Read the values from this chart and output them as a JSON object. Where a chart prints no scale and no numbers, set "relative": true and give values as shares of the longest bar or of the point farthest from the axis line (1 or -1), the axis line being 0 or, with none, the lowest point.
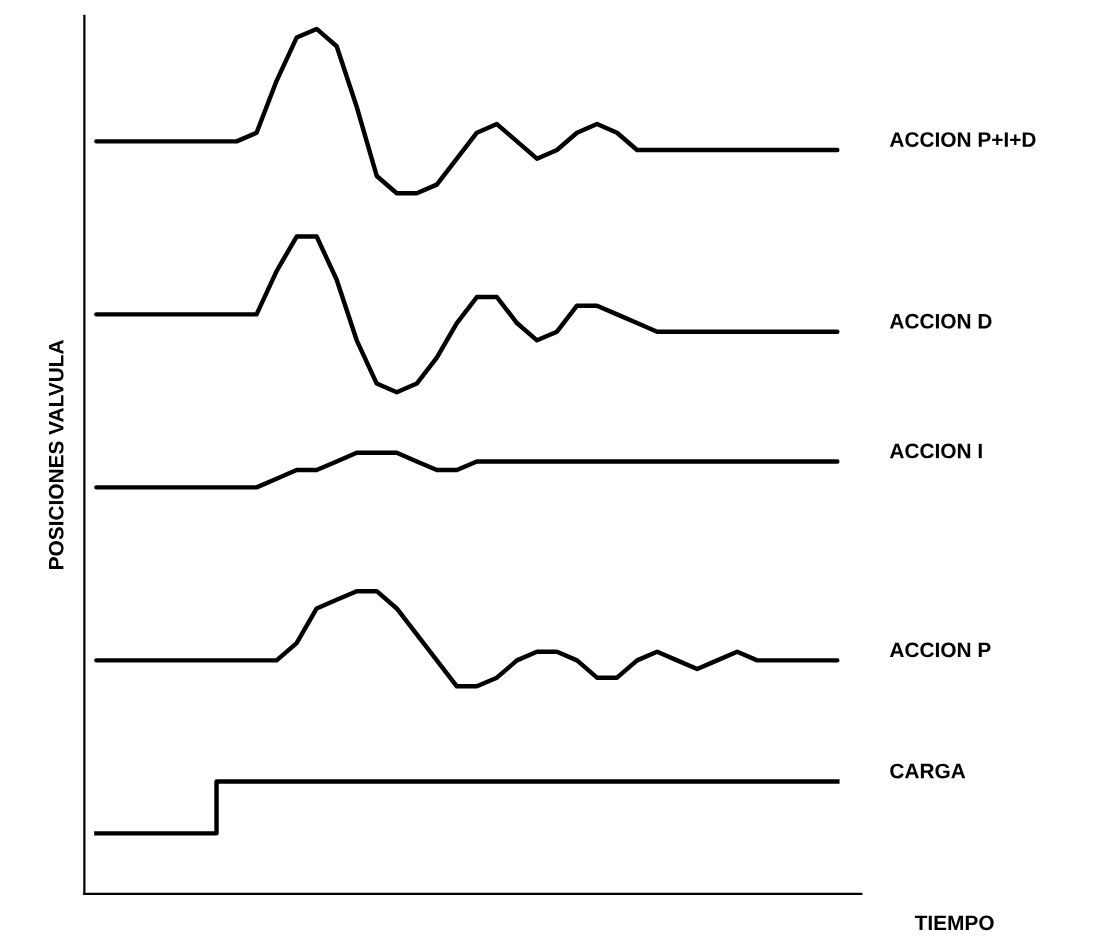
{
  "chart_data": {
    "type": "line",
    "relative": true,
    "tick_labels": false,
    "xlabel": "TIEMPO",
    "ylabel": "POSICIONES VALVULA",
    "categories": [
      null,
      null,
      null,
      null,
      null,
      null,
      null,
      null,
      null,
      null,
      null,
      null,
      null,
      null,
      null,
      null,
      null,
      null,
      null,
      null,
      null,
      null,
      null,
      null,
      null,
      null,
      null,
      null,
      null,
      null,
      null,
      null,
      null,
      null,
      null,
      null,
      null,
      null
    ],
    "series": [
      {
        "name": "ACCION P+I+D",
        "color": "#000000",
        "values": [
          0.87,
          0.87,
          0.87,
          0.87,
          0.87,
          0.87,
          0.87,
          0.87,
          0.88,
          0.94,
          0.99,
          1.0,
          0.98,
          0.91,
          0.83,
          0.81,
          0.81,
          0.82,
          0.85,
          0.88,
          0.89,
          0.87,
          0.85,
          0.86,
          0.88,
          0.89,
          0.88,
          0.86,
          0.86,
          0.86,
          0.86,
          0.86,
          0.86,
          0.86,
          0.86,
          0.86,
          0.86,
          0.86
        ]
      },
      {
        "name": "ACCION D",
        "color": "#000000",
        "values": [
          0.67,
          0.67,
          0.67,
          0.67,
          0.67,
          0.67,
          0.67,
          0.67,
          0.67,
          0.72,
          0.76,
          0.76,
          0.71,
          0.64,
          0.59,
          0.58,
          0.59,
          0.62,
          0.66,
          0.69,
          0.69,
          0.66,
          0.64,
          0.65,
          0.68,
          0.68,
          0.67,
          0.66,
          0.65,
          0.65,
          0.65,
          0.65,
          0.65,
          0.65,
          0.65,
          0.65,
          0.65,
          0.65
        ]
      },
      {
        "name": "ACCION I",
        "color": "#000000",
        "values": [
          0.47,
          0.47,
          0.47,
          0.47,
          0.47,
          0.47,
          0.47,
          0.47,
          0.47,
          0.48,
          0.49,
          0.49,
          0.5,
          0.51,
          0.51,
          0.51,
          0.5,
          0.49,
          0.49,
          0.5,
          0.5,
          0.5,
          0.5,
          0.5,
          0.5,
          0.5,
          0.5,
          0.5,
          0.5,
          0.5,
          0.5,
          0.5,
          0.5,
          0.5,
          0.5,
          0.5,
          0.5,
          0.5
        ]
      },
      {
        "name": "ACCION P",
        "color": "#000000",
        "values": [
          0.27,
          0.27,
          0.27,
          0.27,
          0.27,
          0.27,
          0.27,
          0.27,
          0.27,
          0.27,
          0.29,
          0.33,
          0.34,
          0.35,
          0.35,
          0.33,
          0.3,
          0.27,
          0.24,
          0.24,
          0.25,
          0.27,
          0.28,
          0.28,
          0.27,
          0.25,
          0.25,
          0.27,
          0.28,
          0.27,
          0.26,
          0.27,
          0.28,
          0.27,
          0.27,
          0.27,
          0.27,
          0.27
        ]
      },
      {
        "name": "CARGA",
        "type": "step",
        "color": "#000000",
        "values": [
          0.07,
          0.07,
          0.07,
          0.07,
          0.07,
          0.07,
          0.07,
          0.13,
          0.13,
          0.13,
          0.13,
          0.13,
          0.13,
          0.13,
          0.13,
          0.13,
          0.13,
          0.13,
          0.13,
          0.13,
          0.13,
          0.13,
          0.13,
          0.13,
          0.13,
          0.13,
          0.13,
          0.13,
          0.13,
          0.13,
          0.13,
          0.13,
          0.13,
          0.13,
          0.13,
          0.13,
          0.13,
          0.13
        ]
      }
    ]
  }
}
